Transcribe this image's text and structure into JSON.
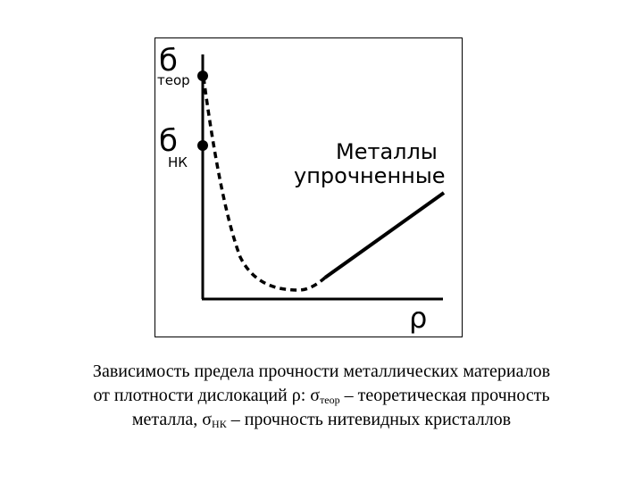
{
  "diagram": {
    "y_label_symbol": "б",
    "y_label_teor_sub": "теор",
    "y_label_nk_symbol": "б",
    "y_label_nk_sub": "НК",
    "x_label": "ρ",
    "curve_label_line1": "Металлы",
    "curve_label_line2": "упрочненные"
  },
  "caption": {
    "line1": "Зависимость предела прочности металлических материалов",
    "line2_pre": "от плотности дислокаций ρ: σ",
    "line2_sub": "теор",
    "line2_post": " – теоретическая прочность",
    "line3_pre": "металла, σ",
    "line3_sub": "НК",
    "line3_post": " – прочность нитевидных кристаллов"
  }
}
